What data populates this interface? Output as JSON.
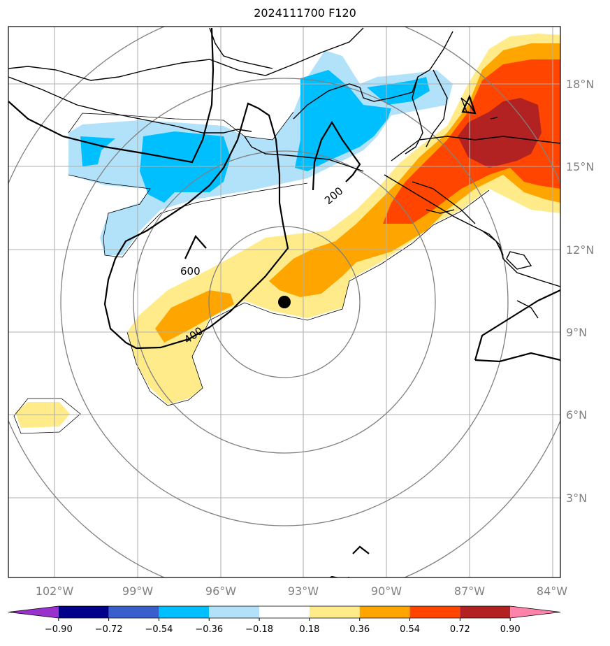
{
  "title": "2024111700 F120",
  "map": {
    "lon_labels": [
      "102°W",
      "99°W",
      "96°W",
      "93°W",
      "90°W",
      "87°W",
      "84°W"
    ],
    "lat_labels": [
      "18°N",
      "15°N",
      "12°N",
      "9°N",
      "6°N",
      "3°N"
    ],
    "contour_labels": [
      "200",
      "400",
      "600"
    ],
    "storm_marker": "storm-center-dot"
  },
  "colorbar": {
    "ticks": [
      "−0.90",
      "−0.72",
      "−0.54",
      "−0.36",
      "−0.18",
      "0.18",
      "0.36",
      "0.54",
      "0.72",
      "0.90"
    ],
    "colors": [
      "#9932cc",
      "#00008b",
      "#3a5fcd",
      "#00bfff",
      "#b2e2fa",
      "#ffffff",
      "#ffeb8a",
      "#ffa500",
      "#ff4500",
      "#b22222",
      "#ff82ab"
    ]
  }
}
